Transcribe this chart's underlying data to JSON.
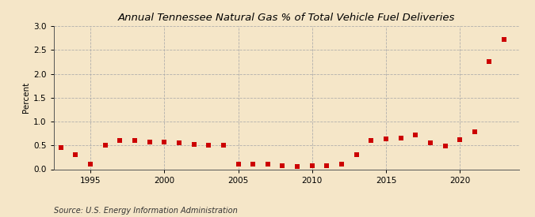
{
  "title": "Annual Tennessee Natural Gas % of Total Vehicle Fuel Deliveries",
  "ylabel": "Percent",
  "source_text": "Source: U.S. Energy Information Administration",
  "background_color": "#f5e6c8",
  "plot_bg_color": "#f5e6c8",
  "marker_color": "#cc0000",
  "xlim": [
    1992.5,
    2024.0
  ],
  "ylim": [
    0.0,
    3.0
  ],
  "yticks": [
    0.0,
    0.5,
    1.0,
    1.5,
    2.0,
    2.5,
    3.0
  ],
  "xticks": [
    1995,
    2000,
    2005,
    2010,
    2015,
    2020
  ],
  "years": [
    1993,
    1994,
    1995,
    1996,
    1997,
    1998,
    1999,
    2000,
    2001,
    2002,
    2003,
    2004,
    2005,
    2006,
    2007,
    2008,
    2009,
    2010,
    2011,
    2012,
    2013,
    2014,
    2015,
    2016,
    2017,
    2018,
    2019,
    2020,
    2021,
    2022,
    2023
  ],
  "values": [
    0.45,
    0.3,
    0.1,
    0.5,
    0.6,
    0.6,
    0.57,
    0.57,
    0.55,
    0.52,
    0.5,
    0.5,
    0.1,
    0.1,
    0.1,
    0.08,
    0.05,
    0.08,
    0.08,
    0.1,
    0.3,
    0.6,
    0.63,
    0.65,
    0.72,
    0.55,
    0.48,
    0.62,
    0.78,
    2.25,
    2.72
  ],
  "marker_size": 14,
  "grid_color": "#aaaaaa",
  "grid_linestyle": "--",
  "title_fontsize": 9.5,
  "ylabel_fontsize": 7.5,
  "tick_fontsize": 7.5,
  "source_fontsize": 7
}
